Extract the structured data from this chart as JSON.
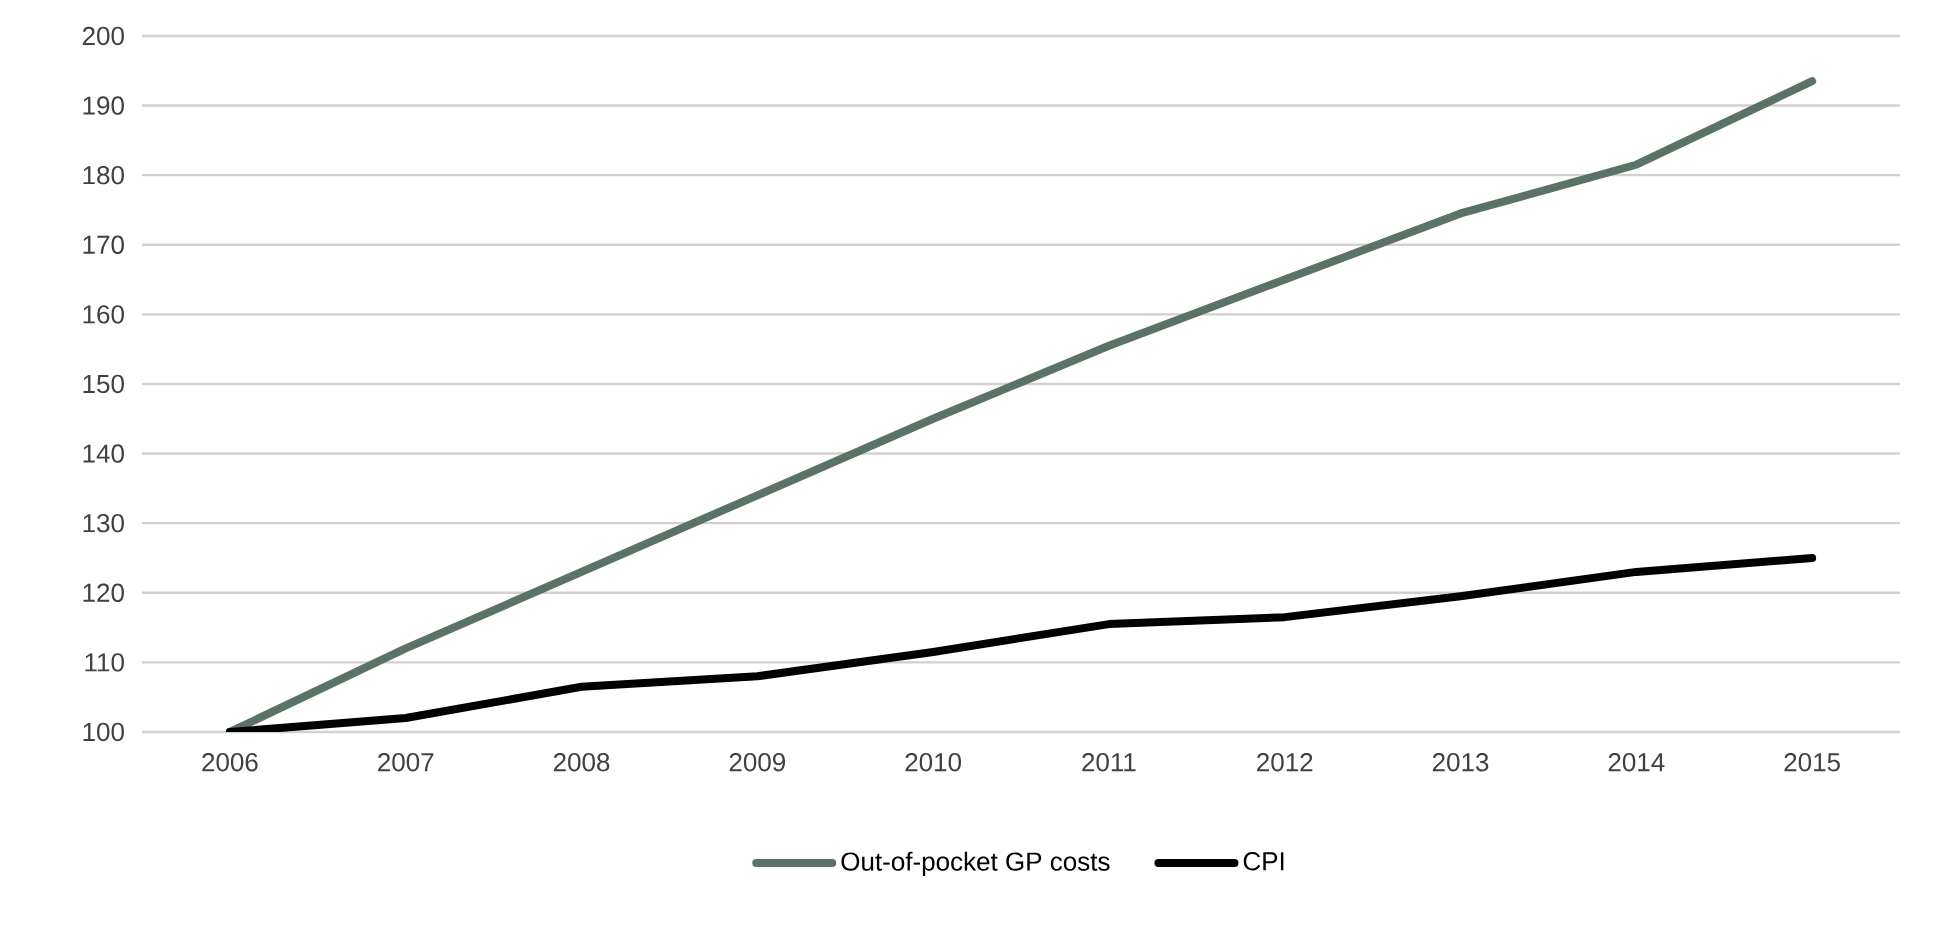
{
  "chart_data": {
    "type": "line",
    "categories": [
      "2006",
      "2007",
      "2008",
      "2009",
      "2010",
      "2011",
      "2012",
      "2013",
      "2014",
      "2015"
    ],
    "series": [
      {
        "name": "Out-of-pocket GP costs",
        "color": "#5b7367",
        "values": [
          100,
          112,
          123,
          134,
          145,
          155.5,
          165,
          174.5,
          181.5,
          193.5
        ]
      },
      {
        "name": "CPI",
        "color": "#000000",
        "values": [
          100,
          102,
          106.5,
          108,
          111.5,
          115.5,
          116.5,
          119.5,
          123,
          125
        ]
      }
    ],
    "ylim": [
      100,
      200
    ],
    "yticks": [
      100,
      110,
      120,
      130,
      140,
      150,
      160,
      170,
      180,
      190,
      200
    ],
    "grid": "y",
    "legend": "bottom",
    "marker": "none",
    "line_style": "solid"
  }
}
